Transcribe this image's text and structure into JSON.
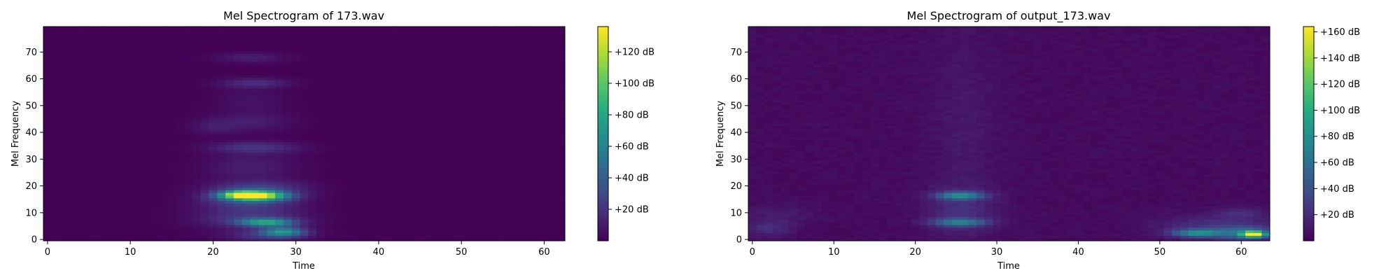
{
  "chart_data": [
    {
      "type": "heatmap",
      "title": "Mel Spectrogram of 173.wav",
      "xlabel": "Time",
      "ylabel": "Mel Frequency",
      "xlim": [
        -0.5,
        62.5
      ],
      "ylim": [
        -0.5,
        79.5
      ],
      "xticks": [
        0,
        10,
        20,
        30,
        40,
        50,
        60
      ],
      "yticks": [
        0,
        10,
        20,
        30,
        40,
        50,
        60,
        70
      ],
      "colormap": "viridis",
      "colorbar": {
        "vmin": 0,
        "vmax": 136,
        "ticks": [
          20,
          40,
          60,
          80,
          100,
          120
        ],
        "tick_labels": [
          "+20 dB",
          "+40 dB",
          "+60 dB",
          "+80 dB",
          "+100 dB",
          "+120 dB"
        ]
      },
      "background_db": 0.5,
      "blobs": [
        {
          "t": 25,
          "m": 16.5,
          "st": 2.6,
          "sm": 1.2,
          "db": 132
        },
        {
          "t": 23,
          "m": 17,
          "st": 1.5,
          "sm": 0.9,
          "db": 40
        },
        {
          "t": 24.5,
          "m": 14.5,
          "st": 4,
          "sm": 2.5,
          "db": 28
        },
        {
          "t": 25.5,
          "m": 19.5,
          "st": 4,
          "sm": 1.8,
          "db": 22
        },
        {
          "t": 26.5,
          "m": 6.5,
          "st": 2.3,
          "sm": 1,
          "db": 70
        },
        {
          "t": 24.5,
          "m": 8,
          "st": 4.5,
          "sm": 2.6,
          "db": 22
        },
        {
          "t": 28.5,
          "m": 3,
          "st": 1.8,
          "sm": 1.2,
          "db": 60
        },
        {
          "t": 26.5,
          "m": 1.5,
          "st": 3.5,
          "sm": 1.6,
          "db": 20
        },
        {
          "t": 25,
          "m": 34.5,
          "st": 3.8,
          "sm": 1.5,
          "db": 20
        },
        {
          "t": 24.5,
          "m": 27,
          "st": 4,
          "sm": 4,
          "db": 11
        },
        {
          "t": 24.5,
          "m": 44,
          "st": 3.5,
          "sm": 2.5,
          "db": 11
        },
        {
          "t": 25,
          "m": 58.5,
          "st": 3,
          "sm": 1.3,
          "db": 18
        },
        {
          "t": 24.5,
          "m": 68,
          "st": 3,
          "sm": 1.3,
          "db": 12
        },
        {
          "t": 20,
          "m": 42,
          "st": 2,
          "sm": 2,
          "db": 8
        },
        {
          "t": 24.5,
          "m": 52,
          "st": 3,
          "sm": 3,
          "db": 7
        }
      ]
    },
    {
      "type": "heatmap",
      "title": "Mel Spectrogram of output_173.wav",
      "xlabel": "Time",
      "ylabel": "Mel Frequency",
      "xlim": [
        -0.5,
        63.5
      ],
      "ylim": [
        -0.5,
        79.5
      ],
      "xticks": [
        0,
        10,
        20,
        30,
        40,
        50,
        60
      ],
      "yticks": [
        0,
        10,
        20,
        30,
        40,
        50,
        60,
        70
      ],
      "colormap": "viridis",
      "colorbar": {
        "vmin": 0,
        "vmax": 164,
        "ticks": [
          20,
          40,
          60,
          80,
          100,
          120,
          140,
          160
        ],
        "tick_labels": [
          "+20 dB",
          "+40 dB",
          "+60 dB",
          "+80 dB",
          "+100 dB",
          "+120 dB",
          "+140 dB",
          "+160 dB"
        ]
      },
      "background_db": 5,
      "blobs": [
        {
          "t": 61.5,
          "m": 2,
          "st": 0.9,
          "sm": 0.7,
          "db": 160
        },
        {
          "t": 60.5,
          "m": 2.5,
          "st": 2.6,
          "sm": 1.6,
          "db": 55
        },
        {
          "t": 54.5,
          "m": 2.5,
          "st": 2,
          "sm": 1,
          "db": 70
        },
        {
          "t": 57,
          "m": 5,
          "st": 5,
          "sm": 3,
          "db": 18
        },
        {
          "t": 60,
          "m": 10,
          "st": 2,
          "sm": 1.5,
          "db": 15
        },
        {
          "t": 25.5,
          "m": 16.5,
          "st": 2,
          "sm": 1,
          "db": 70
        },
        {
          "t": 25.5,
          "m": 6.5,
          "st": 2.3,
          "sm": 1,
          "db": 60
        },
        {
          "t": 25.5,
          "m": 11,
          "st": 3,
          "sm": 6,
          "db": 14
        },
        {
          "t": 2,
          "m": 4,
          "st": 2,
          "sm": 2,
          "db": 14
        },
        {
          "t": 3,
          "m": 9,
          "st": 3,
          "sm": 3,
          "db": 8
        },
        {
          "t": 26,
          "m": 40,
          "st": 3,
          "sm": 30,
          "db": 6
        }
      ]
    }
  ]
}
